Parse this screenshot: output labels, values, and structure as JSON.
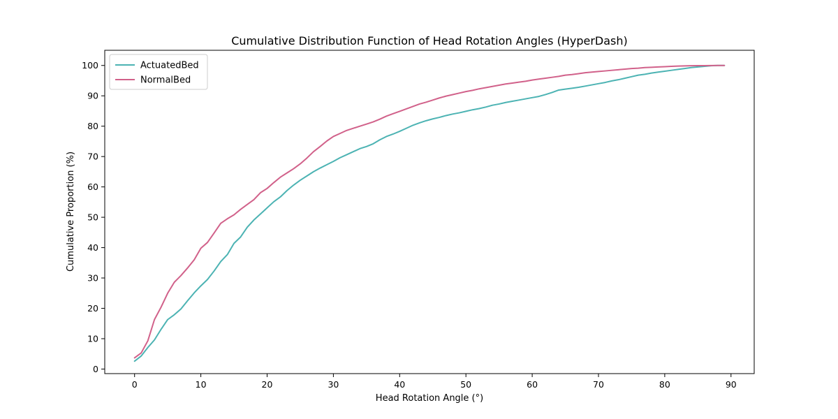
{
  "colors": {
    "actuated": "#4cb3b3",
    "normal": "#d1618a",
    "axis": "#000000",
    "legend_border": "#cccccc"
  },
  "chart_data": {
    "type": "line",
    "title": "Cumulative Distribution Function of Head Rotation Angles (HyperDash)",
    "xlabel": "Head Rotation Angle (°)",
    "ylabel": "Cumulative Proportion (%)",
    "xlim": [
      -4.5,
      93.5
    ],
    "ylim": [
      -1.5,
      105
    ],
    "xticks": [
      0,
      10,
      20,
      30,
      40,
      50,
      60,
      70,
      80,
      90
    ],
    "yticks": [
      0,
      10,
      20,
      30,
      40,
      50,
      60,
      70,
      80,
      90,
      100
    ],
    "grid": false,
    "legend_position": "top-left",
    "series": [
      {
        "name": "ActuatedBed",
        "color": "#4cb3b3",
        "x": [
          0,
          1,
          2,
          3,
          4,
          5,
          6,
          7,
          8,
          9,
          10,
          11,
          12,
          13,
          14,
          15,
          16,
          17,
          18,
          19,
          20,
          21,
          22,
          23,
          24,
          25,
          26,
          27,
          28,
          29,
          30,
          31,
          32,
          33,
          34,
          35,
          36,
          37,
          38,
          39,
          40,
          41,
          42,
          43,
          44,
          45,
          46,
          47,
          48,
          49,
          50,
          51,
          52,
          53,
          54,
          55,
          56,
          57,
          58,
          59,
          60,
          61,
          62,
          63,
          64,
          65,
          66,
          67,
          68,
          69,
          70,
          71,
          72,
          73,
          74,
          75,
          76,
          77,
          78,
          79,
          80,
          81,
          82,
          83,
          84,
          85,
          86,
          87,
          88,
          89
        ],
        "y": [
          2.6,
          4.3,
          7.1,
          9.6,
          13.1,
          16.3,
          17.9,
          19.8,
          22.5,
          25.1,
          27.4,
          29.5,
          32.3,
          35.4,
          37.7,
          41.4,
          43.5,
          46.7,
          49.1,
          51.1,
          53.1,
          55.1,
          56.7,
          58.8,
          60.6,
          62.2,
          63.6,
          65.0,
          66.2,
          67.3,
          68.4,
          69.6,
          70.6,
          71.6,
          72.6,
          73.3,
          74.2,
          75.5,
          76.6,
          77.4,
          78.3,
          79.3,
          80.3,
          81.1,
          81.8,
          82.4,
          82.9,
          83.5,
          84.0,
          84.4,
          84.9,
          85.4,
          85.8,
          86.3,
          86.9,
          87.3,
          87.8,
          88.2,
          88.6,
          89.0,
          89.4,
          89.8,
          90.4,
          91.1,
          91.9,
          92.2,
          92.5,
          92.8,
          93.2,
          93.6,
          94.0,
          94.4,
          94.9,
          95.3,
          95.8,
          96.3,
          96.8,
          97.1,
          97.5,
          97.8,
          98.1,
          98.4,
          98.7,
          99.0,
          99.3,
          99.5,
          99.7,
          99.9,
          100.0,
          100.0
        ]
      },
      {
        "name": "NormalBed",
        "color": "#d1618a",
        "x": [
          0,
          1,
          2,
          3,
          4,
          5,
          6,
          7,
          8,
          9,
          10,
          11,
          12,
          13,
          14,
          15,
          16,
          17,
          18,
          19,
          20,
          21,
          22,
          23,
          24,
          25,
          26,
          27,
          28,
          29,
          30,
          31,
          32,
          33,
          34,
          35,
          36,
          37,
          38,
          39,
          40,
          41,
          42,
          43,
          44,
          45,
          46,
          47,
          48,
          49,
          50,
          51,
          52,
          53,
          54,
          55,
          56,
          57,
          58,
          59,
          60,
          61,
          62,
          63,
          64,
          65,
          66,
          67,
          68,
          69,
          70,
          71,
          72,
          73,
          74,
          75,
          76,
          77,
          78,
          79,
          80,
          81,
          82,
          83,
          84,
          85,
          86,
          87,
          88,
          89
        ],
        "y": [
          3.7,
          5.3,
          9.3,
          16.3,
          20.4,
          25.0,
          28.6,
          30.8,
          33.3,
          36.0,
          39.8,
          41.7,
          44.8,
          48.0,
          49.5,
          50.8,
          52.6,
          54.2,
          55.8,
          58.1,
          59.5,
          61.4,
          63.2,
          64.6,
          66.0,
          67.6,
          69.5,
          71.6,
          73.3,
          75.1,
          76.6,
          77.6,
          78.6,
          79.3,
          80.0,
          80.7,
          81.4,
          82.3,
          83.3,
          84.1,
          84.9,
          85.7,
          86.5,
          87.3,
          87.9,
          88.6,
          89.3,
          89.9,
          90.4,
          90.9,
          91.4,
          91.8,
          92.3,
          92.7,
          93.1,
          93.5,
          93.9,
          94.2,
          94.5,
          94.8,
          95.2,
          95.5,
          95.8,
          96.1,
          96.4,
          96.8,
          97.0,
          97.3,
          97.6,
          97.8,
          98.0,
          98.2,
          98.4,
          98.6,
          98.8,
          99.0,
          99.1,
          99.3,
          99.4,
          99.5,
          99.6,
          99.7,
          99.8,
          99.85,
          99.9,
          99.93,
          99.95,
          99.97,
          100.0,
          100.0
        ]
      }
    ]
  }
}
